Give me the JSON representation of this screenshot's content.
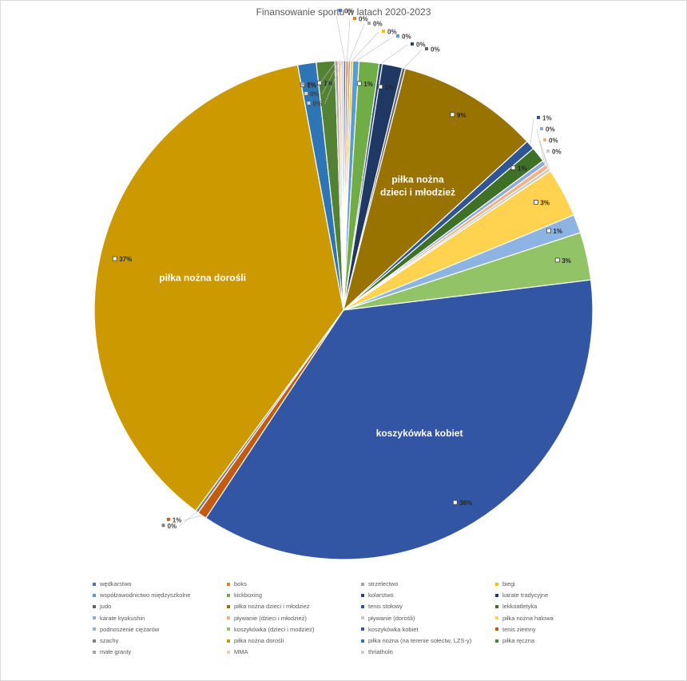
{
  "chart_data": {
    "type": "pie",
    "title": "Finansowanie sportu w latach 2020-2023",
    "start_angle_deg": 0,
    "slices": [
      {
        "name": "wędkarstwo",
        "value": 0.15,
        "color": "#4472c4",
        "label": "0%"
      },
      {
        "name": "boks",
        "value": 0.15,
        "color": "#ed7d31",
        "label": "0%"
      },
      {
        "name": "strzelectwo",
        "value": 0.15,
        "color": "#a5a5a5",
        "label": "0%"
      },
      {
        "name": "biegi",
        "value": 0.15,
        "color": "#ffc000",
        "label": "0%"
      },
      {
        "name": "współzawodnictwo międzyszkolne",
        "value": 0.4,
        "color": "#5b9bd5",
        "label": "0%"
      },
      {
        "name": "kickboxing",
        "value": 1.3,
        "color": "#70ad47",
        "label": "1%"
      },
      {
        "name": "kolarstwo",
        "value": 0.2,
        "color": "#264478",
        "label": "0%"
      },
      {
        "name": "karate tradycyjne",
        "value": 1.3,
        "color": "#203864",
        "label": "1%"
      },
      {
        "name": "judo",
        "value": 0.2,
        "color": "#636363",
        "label": "0%"
      },
      {
        "name": "piłka nożna dzieci i młodzież",
        "value": 9.2,
        "color": "#987300",
        "label": "9%",
        "inner_label": [
          "piłka nożna",
          "dzieci i młodzież"
        ]
      },
      {
        "name": "tenis stołowy",
        "value": 0.6,
        "color": "#2f5597",
        "label": "1%"
      },
      {
        "name": "lekkoatletyka",
        "value": 1.0,
        "color": "#3e7126",
        "label": "1%"
      },
      {
        "name": "karate kyokushin",
        "value": 0.3,
        "color": "#8faadc",
        "label": "0%"
      },
      {
        "name": "pływanie (dzieci i młodzież)",
        "value": 0.3,
        "color": "#f4b183",
        "label": "0%"
      },
      {
        "name": "pływanie (dorośli)",
        "value": 0.2,
        "color": "#c9c9c9",
        "label": "0%"
      },
      {
        "name": "piłka nożna halowa",
        "value": 3.2,
        "color": "#ffd34f",
        "label": "3%"
      },
      {
        "name": "podnoszenie ciężarów",
        "value": 1.2,
        "color": "#8db3e2",
        "label": "1%"
      },
      {
        "name": "koszykówka (dzieci i modzież)",
        "value": 3.1,
        "color": "#92c467",
        "label": "3%"
      },
      {
        "name": "koszykówka kobiet",
        "value": 36.3,
        "color": "#3256a4",
        "label": "36%",
        "inner_label": [
          "koszykówka kobiet"
        ]
      },
      {
        "name": "tenis ziemny",
        "value": 0.6,
        "color": "#c55a11",
        "label": "1%"
      },
      {
        "name": "szachy",
        "value": 0.2,
        "color": "#7f7f7f",
        "label": "0%"
      },
      {
        "name": "piłka nożna dorośli",
        "value": 37.0,
        "color": "#cc9a00",
        "label": "37%",
        "inner_label": [
          "piłka nożna dorośli"
        ]
      },
      {
        "name": "piłka nożna (na terenie sołectw, LZS-y)",
        "value": 1.2,
        "color": "#2e75b6",
        "label": "1%"
      },
      {
        "name": "piłka ręczna",
        "value": 1.2,
        "color": "#548235",
        "label": "1%"
      },
      {
        "name": "małe granty",
        "value": 0.2,
        "color": "#a6a6a6",
        "label": "0%"
      },
      {
        "name": "MMA",
        "value": 0.2,
        "color": "#f8cbad",
        "label": "0%"
      },
      {
        "name": "thriatholn",
        "value": 0.15,
        "color": "#d0cece",
        "label": "0%"
      }
    ],
    "legend": {
      "position": "bottom",
      "items": [
        {
          "text": "wędkarstwo",
          "color": "#4472c4"
        },
        {
          "text": "boks",
          "color": "#ed7d31"
        },
        {
          "text": "strzelectwo",
          "color": "#a5a5a5"
        },
        {
          "text": "biegi",
          "color": "#ffc000"
        },
        {
          "text": "współzawodnictwo międzyszkolne",
          "color": "#5b9bd5"
        },
        {
          "text": "kickboxing",
          "color": "#70ad47"
        },
        {
          "text": "kolarstwo",
          "color": "#264478"
        },
        {
          "text": "karate tradycyjne",
          "color": "#203864"
        },
        {
          "text": "judo",
          "color": "#636363"
        },
        {
          "text": "piłka nożna dzieci i młodzież",
          "color": "#987300"
        },
        {
          "text": "tenis stołowy",
          "color": "#2f5597"
        },
        {
          "text": "lekkoatletyka",
          "color": "#3e7126"
        },
        {
          "text": "karate kyokushin",
          "color": "#8faadc"
        },
        {
          "text": "pływanie (dzieci i młodzież)",
          "color": "#f4b183"
        },
        {
          "text": "pływanie (dorośli)",
          "color": "#c9c9c9"
        },
        {
          "text": "piłka nożna halowa",
          "color": "#ffd34f"
        },
        {
          "text": "podnoszenie ciężarów",
          "color": "#8db3e2"
        },
        {
          "text": "koszykówka (dzieci i modzież)",
          "color": "#92c467"
        },
        {
          "text": "koszykówka kobiet",
          "color": "#3256a4"
        },
        {
          "text": "tenis ziemny",
          "color": "#c55a11"
        },
        {
          "text": "szachy",
          "color": "#7f7f7f"
        },
        {
          "text": "piłka nożna dorośli",
          "color": "#cc9a00"
        },
        {
          "text": "piłka nożna (na terenie sołectw, LZS-y)",
          "color": "#2e75b6"
        },
        {
          "text": "piłka ręczna",
          "color": "#548235"
        },
        {
          "text": "małe granty",
          "color": "#a6a6a6"
        },
        {
          "text": "MMA",
          "color": "#f8cbad"
        },
        {
          "text": "thriatholn",
          "color": "#d0cece"
        }
      ]
    }
  }
}
